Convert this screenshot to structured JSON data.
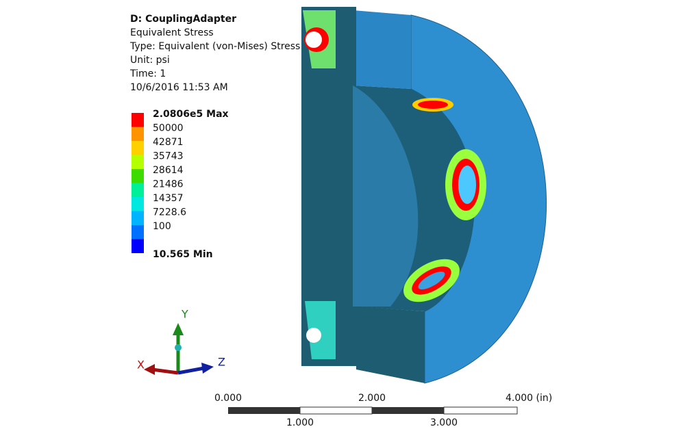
{
  "header": {
    "title": "D: CouplingAdapter",
    "lines": [
      "Equivalent Stress",
      "Type: Equivalent (von-Mises) Stress",
      "Unit: psi",
      "Time: 1",
      "10/6/2016 11:53 AM"
    ]
  },
  "legend": {
    "labels": [
      "2.0806e5 Max",
      "50000",
      "42871",
      "35743",
      "28614",
      "21486",
      "14357",
      "7228.6",
      "100",
      "10.565 Min"
    ],
    "colors": [
      "#ff0000",
      "#ff9400",
      "#ffd000",
      "#b4ff00",
      "#3cdc00",
      "#00f09a",
      "#00e8e0",
      "#00b4ff",
      "#0070ff",
      "#0000ff"
    ]
  },
  "triad": {
    "x": "X",
    "y": "Y",
    "z": "Z"
  },
  "scale_bar": {
    "top": [
      "0.000",
      "2.000",
      "4.000 (in)"
    ],
    "bottom": [
      "1.000",
      "3.000"
    ]
  }
}
